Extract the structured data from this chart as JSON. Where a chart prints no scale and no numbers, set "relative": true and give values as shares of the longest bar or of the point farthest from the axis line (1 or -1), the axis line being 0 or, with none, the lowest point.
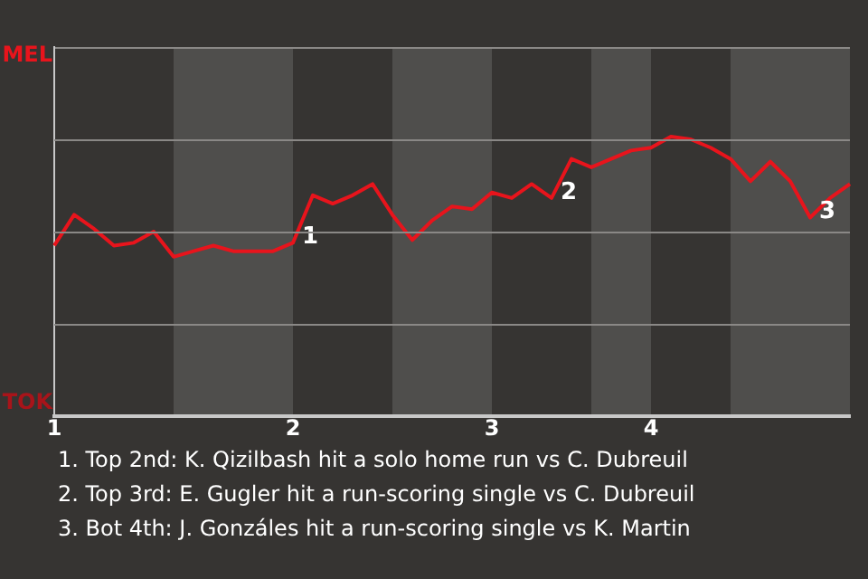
{
  "chart_data": {
    "type": "line",
    "relative": true,
    "categories": [
      "1",
      null,
      null,
      null,
      null,
      null,
      null,
      null,
      null,
      null,
      null,
      null,
      "2",
      null,
      null,
      null,
      null,
      null,
      null,
      null,
      null,
      null,
      "3",
      null,
      null,
      null,
      null,
      null,
      null,
      null,
      "4",
      null,
      null,
      null,
      null,
      null,
      null,
      null,
      null,
      null,
      null
    ],
    "series": [
      {
        "color": "#e8141c",
        "values": [
          0.61,
          0.72,
          0.67,
          0.61,
          0.62,
          0.66,
          0.57,
          0.59,
          0.61,
          0.59,
          0.59,
          0.59,
          0.62,
          0.79,
          0.76,
          0.79,
          0.83,
          0.72,
          0.63,
          0.7,
          0.75,
          0.74,
          0.8,
          0.78,
          0.83,
          0.78,
          0.92,
          0.89,
          0.92,
          0.95,
          0.96,
          1,
          0.99,
          0.96,
          0.92,
          0.84,
          0.91,
          0.84,
          0.71,
          0.78,
          0.83
        ]
      }
    ],
    "marker": "none",
    "line_style": "solid",
    "legend": false,
    "ref_lines": [
      {
        "axis": "y",
        "value": 0.33,
        "color": "#8a8886"
      },
      {
        "axis": "y",
        "value": 0.66,
        "color": "#8a8886"
      },
      {
        "axis": "y",
        "value": 0.99,
        "color": "#8a8886"
      }
    ],
    "annotations": [
      "MEL",
      "TOK",
      "1",
      "2",
      "3",
      "1. Top 2nd: K. Qizilbash hit a solo home run vs C. Dubreuil",
      "2. Top 3rd: E. Gugler hit a run-scoring single vs C. Dubreuil",
      "3. Bot 4th: J. Gonzáles hit a run-scoring single vs K. Martin"
    ]
  }
}
